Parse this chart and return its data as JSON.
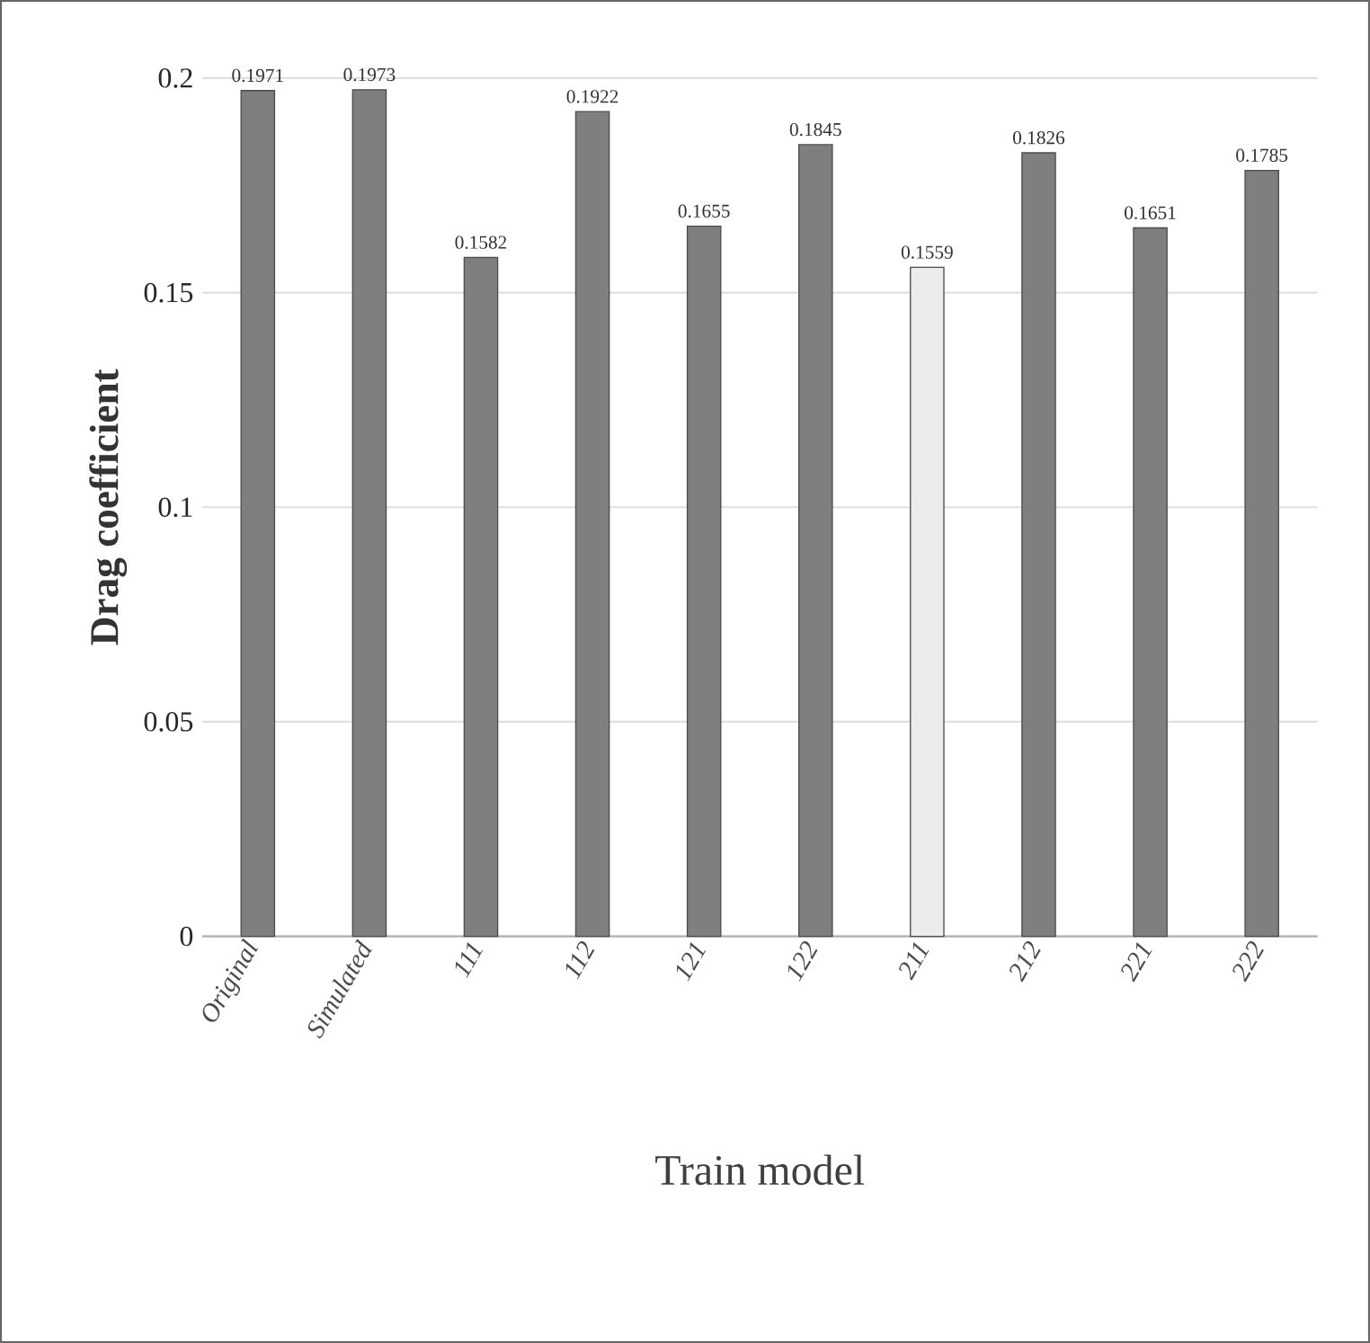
{
  "chart_data": {
    "type": "bar",
    "xlabel": "Train model",
    "ylabel": "Drag coefficient",
    "categories": [
      "Original",
      "Simulated",
      "111",
      "112",
      "121",
      "122",
      "211",
      "212",
      "221",
      "222"
    ],
    "values": [
      0.1971,
      0.1973,
      0.1582,
      0.1922,
      0.1655,
      0.1845,
      0.1559,
      0.1826,
      0.1651,
      0.1785
    ],
    "colors": [
      "#7f7f7f",
      "#7f7f7f",
      "#7f7f7f",
      "#7f7f7f",
      "#7f7f7f",
      "#7f7f7f",
      "#ececec",
      "#7f7f7f",
      "#7f7f7f",
      "#7f7f7f"
    ],
    "ylim": [
      0,
      0.2
    ],
    "yticks": [
      0,
      0.05,
      0.1,
      0.15,
      0.2
    ],
    "grid": "y",
    "data_labels": true
  }
}
